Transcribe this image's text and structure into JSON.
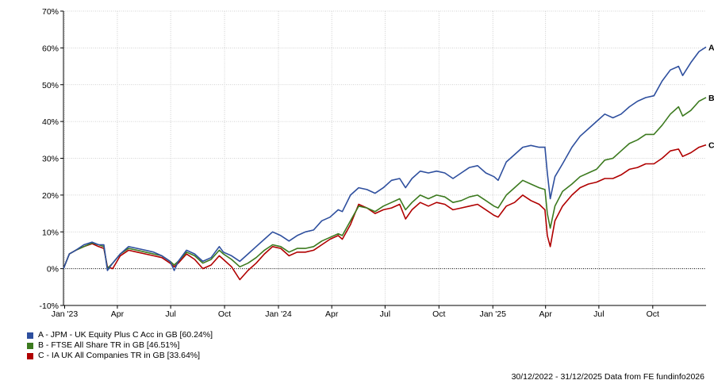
{
  "chart_data": {
    "type": "line",
    "title": "",
    "xlabel": "",
    "ylabel": "",
    "ylim": [
      -10,
      70
    ],
    "y_ticks": [
      "-10%",
      "0%",
      "10%",
      "20%",
      "30%",
      "40%",
      "50%",
      "60%",
      "70%"
    ],
    "y_tick_values": [
      -10,
      0,
      10,
      20,
      30,
      40,
      50,
      60,
      70
    ],
    "x_range": [
      "2022-12-30",
      "2025-12-31"
    ],
    "x_ticks": [
      {
        "label": "Jan '23",
        "date": "2023-01-01"
      },
      {
        "label": "Apr",
        "date": "2023-04-01"
      },
      {
        "label": "Jul",
        "date": "2023-07-01"
      },
      {
        "label": "Oct",
        "date": "2023-10-01"
      },
      {
        "label": "Jan '24",
        "date": "2024-01-01"
      },
      {
        "label": "Apr",
        "date": "2024-04-01"
      },
      {
        "label": "Jul",
        "date": "2024-07-01"
      },
      {
        "label": "Oct",
        "date": "2024-10-01"
      },
      {
        "label": "Jan '25",
        "date": "2025-01-01"
      },
      {
        "label": "Apr",
        "date": "2025-04-01"
      },
      {
        "label": "Jul",
        "date": "2025-07-01"
      },
      {
        "label": "Oct",
        "date": "2025-10-01"
      }
    ],
    "grid": true,
    "legend_position": "bottom-left",
    "series": [
      {
        "name": "A - JPM - UK Equity Plus C Acc in GB [60.24%]",
        "end_label": "A",
        "color": "#2e4f9e",
        "points": [
          [
            "2022-12-30",
            0
          ],
          [
            "2023-01-09",
            4
          ],
          [
            "2023-01-20",
            5
          ],
          [
            "2023-02-03",
            6.5
          ],
          [
            "2023-02-17",
            7.2
          ],
          [
            "2023-02-28",
            6.5
          ],
          [
            "2023-03-09",
            6.5
          ],
          [
            "2023-03-15",
            -0.5
          ],
          [
            "2023-03-24",
            1.5
          ],
          [
            "2023-04-06",
            4
          ],
          [
            "2023-04-20",
            6
          ],
          [
            "2023-05-05",
            5.5
          ],
          [
            "2023-05-19",
            5
          ],
          [
            "2023-06-02",
            4.5
          ],
          [
            "2023-06-16",
            3.5
          ],
          [
            "2023-06-30",
            2
          ],
          [
            "2023-07-07",
            -0.5
          ],
          [
            "2023-07-14",
            2
          ],
          [
            "2023-07-28",
            5
          ],
          [
            "2023-08-11",
            4
          ],
          [
            "2023-08-25",
            2
          ],
          [
            "2023-09-08",
            3
          ],
          [
            "2023-09-22",
            6
          ],
          [
            "2023-09-29",
            4.5
          ],
          [
            "2023-10-13",
            3.5
          ],
          [
            "2023-10-27",
            2
          ],
          [
            "2023-11-10",
            4
          ],
          [
            "2023-11-24",
            6
          ],
          [
            "2023-12-08",
            8
          ],
          [
            "2023-12-22",
            10
          ],
          [
            "2024-01-05",
            9
          ],
          [
            "2024-01-19",
            7.5
          ],
          [
            "2024-02-02",
            9
          ],
          [
            "2024-02-16",
            10
          ],
          [
            "2024-03-01",
            10.5
          ],
          [
            "2024-03-15",
            13
          ],
          [
            "2024-03-29",
            14
          ],
          [
            "2024-04-12",
            16
          ],
          [
            "2024-04-19",
            15.5
          ],
          [
            "2024-05-03",
            20
          ],
          [
            "2024-05-17",
            22
          ],
          [
            "2024-05-31",
            21.5
          ],
          [
            "2024-06-14",
            20.5
          ],
          [
            "2024-06-28",
            22
          ],
          [
            "2024-07-12",
            24
          ],
          [
            "2024-07-26",
            24.5
          ],
          [
            "2024-08-05",
            22
          ],
          [
            "2024-08-16",
            24.5
          ],
          [
            "2024-08-30",
            26.5
          ],
          [
            "2024-09-13",
            26
          ],
          [
            "2024-09-27",
            26.5
          ],
          [
            "2024-10-11",
            26
          ],
          [
            "2024-10-25",
            24.5
          ],
          [
            "2024-11-08",
            26
          ],
          [
            "2024-11-22",
            27.5
          ],
          [
            "2024-12-06",
            28
          ],
          [
            "2024-12-20",
            26
          ],
          [
            "2025-01-03",
            25
          ],
          [
            "2025-01-10",
            24
          ],
          [
            "2025-01-24",
            29
          ],
          [
            "2025-02-07",
            31
          ],
          [
            "2025-02-21",
            33
          ],
          [
            "2025-03-07",
            33.5
          ],
          [
            "2025-03-21",
            33
          ],
          [
            "2025-03-31",
            33
          ],
          [
            "2025-04-04",
            26
          ],
          [
            "2025-04-09",
            19
          ],
          [
            "2025-04-17",
            25
          ],
          [
            "2025-04-30",
            28.5
          ],
          [
            "2025-05-16",
            33
          ],
          [
            "2025-05-30",
            36
          ],
          [
            "2025-06-13",
            38
          ],
          [
            "2025-06-27",
            40
          ],
          [
            "2025-07-11",
            42
          ],
          [
            "2025-07-25",
            41
          ],
          [
            "2025-08-08",
            42
          ],
          [
            "2025-08-22",
            44
          ],
          [
            "2025-09-05",
            45.5
          ],
          [
            "2025-09-19",
            46.5
          ],
          [
            "2025-10-03",
            47
          ],
          [
            "2025-10-17",
            51
          ],
          [
            "2025-10-31",
            54
          ],
          [
            "2025-11-14",
            55
          ],
          [
            "2025-11-21",
            52.5
          ],
          [
            "2025-12-05",
            56
          ],
          [
            "2025-12-19",
            59
          ],
          [
            "2025-12-31",
            60.24
          ]
        ]
      },
      {
        "name": "B - FTSE All Share TR in GB [46.51%]",
        "end_label": "B",
        "color": "#3c7a1f",
        "points": [
          [
            "2022-12-30",
            0
          ],
          [
            "2023-01-09",
            4
          ],
          [
            "2023-01-20",
            5
          ],
          [
            "2023-02-03",
            6
          ],
          [
            "2023-02-17",
            7
          ],
          [
            "2023-02-28",
            6.5
          ],
          [
            "2023-03-09",
            6
          ],
          [
            "2023-03-15",
            0
          ],
          [
            "2023-03-24",
            1.5
          ],
          [
            "2023-04-06",
            4
          ],
          [
            "2023-04-20",
            5.5
          ],
          [
            "2023-05-05",
            5
          ],
          [
            "2023-05-19",
            4.5
          ],
          [
            "2023-06-02",
            4
          ],
          [
            "2023-06-16",
            3.5
          ],
          [
            "2023-06-30",
            2
          ],
          [
            "2023-07-07",
            1
          ],
          [
            "2023-07-14",
            2
          ],
          [
            "2023-07-28",
            4.5
          ],
          [
            "2023-08-11",
            3.5
          ],
          [
            "2023-08-25",
            1.5
          ],
          [
            "2023-09-08",
            2.5
          ],
          [
            "2023-09-22",
            5
          ],
          [
            "2023-09-29",
            4
          ],
          [
            "2023-10-13",
            2.5
          ],
          [
            "2023-10-27",
            0.5
          ],
          [
            "2023-11-10",
            1.5
          ],
          [
            "2023-11-24",
            3
          ],
          [
            "2023-12-08",
            5
          ],
          [
            "2023-12-22",
            6.5
          ],
          [
            "2024-01-05",
            6
          ],
          [
            "2024-01-19",
            4.5
          ],
          [
            "2024-02-02",
            5.5
          ],
          [
            "2024-02-16",
            5.5
          ],
          [
            "2024-03-01",
            6
          ],
          [
            "2024-03-15",
            7.5
          ],
          [
            "2024-03-29",
            8.5
          ],
          [
            "2024-04-12",
            9.5
          ],
          [
            "2024-04-19",
            9
          ],
          [
            "2024-05-03",
            13
          ],
          [
            "2024-05-17",
            17
          ],
          [
            "2024-05-31",
            16.5
          ],
          [
            "2024-06-14",
            15.5
          ],
          [
            "2024-06-28",
            17
          ],
          [
            "2024-07-12",
            18
          ],
          [
            "2024-07-26",
            19
          ],
          [
            "2024-08-05",
            16
          ],
          [
            "2024-08-16",
            18
          ],
          [
            "2024-08-30",
            20
          ],
          [
            "2024-09-13",
            19
          ],
          [
            "2024-09-27",
            20
          ],
          [
            "2024-10-11",
            19.5
          ],
          [
            "2024-10-25",
            18
          ],
          [
            "2024-11-08",
            18.5
          ],
          [
            "2024-11-22",
            19.5
          ],
          [
            "2024-12-06",
            20
          ],
          [
            "2024-12-20",
            18.5
          ],
          [
            "2025-01-03",
            17
          ],
          [
            "2025-01-10",
            16.5
          ],
          [
            "2025-01-24",
            20
          ],
          [
            "2025-02-07",
            22
          ],
          [
            "2025-02-21",
            24
          ],
          [
            "2025-03-07",
            23
          ],
          [
            "2025-03-21",
            22
          ],
          [
            "2025-03-31",
            21.5
          ],
          [
            "2025-04-04",
            15
          ],
          [
            "2025-04-09",
            11
          ],
          [
            "2025-04-17",
            17
          ],
          [
            "2025-04-30",
            21
          ],
          [
            "2025-05-16",
            23
          ],
          [
            "2025-05-30",
            25
          ],
          [
            "2025-06-13",
            26
          ],
          [
            "2025-06-27",
            27
          ],
          [
            "2025-07-11",
            29.5
          ],
          [
            "2025-07-25",
            30
          ],
          [
            "2025-08-08",
            32
          ],
          [
            "2025-08-22",
            34
          ],
          [
            "2025-09-05",
            35
          ],
          [
            "2025-09-19",
            36.5
          ],
          [
            "2025-10-03",
            36.5
          ],
          [
            "2025-10-17",
            39
          ],
          [
            "2025-10-31",
            42
          ],
          [
            "2025-11-14",
            44
          ],
          [
            "2025-11-21",
            41.5
          ],
          [
            "2025-12-05",
            43
          ],
          [
            "2025-12-19",
            45.5
          ],
          [
            "2025-12-31",
            46.51
          ]
        ]
      },
      {
        "name": "C - IA UK All Companies TR in GB [33.64%]",
        "end_label": "C",
        "color": "#b00000",
        "points": [
          [
            "2022-12-30",
            0
          ],
          [
            "2023-01-09",
            4
          ],
          [
            "2023-01-20",
            5
          ],
          [
            "2023-02-03",
            6
          ],
          [
            "2023-02-17",
            6.8
          ],
          [
            "2023-02-28",
            6
          ],
          [
            "2023-03-09",
            5.5
          ],
          [
            "2023-03-15",
            0.5
          ],
          [
            "2023-03-24",
            0
          ],
          [
            "2023-04-06",
            3.5
          ],
          [
            "2023-04-20",
            5
          ],
          [
            "2023-05-05",
            4.5
          ],
          [
            "2023-05-19",
            4
          ],
          [
            "2023-06-02",
            3.5
          ],
          [
            "2023-06-16",
            3
          ],
          [
            "2023-06-30",
            1.5
          ],
          [
            "2023-07-07",
            0.5
          ],
          [
            "2023-07-14",
            1.5
          ],
          [
            "2023-07-28",
            4
          ],
          [
            "2023-08-11",
            2.5
          ],
          [
            "2023-08-25",
            0
          ],
          [
            "2023-09-08",
            1
          ],
          [
            "2023-09-22",
            3.5
          ],
          [
            "2023-09-29",
            2.5
          ],
          [
            "2023-10-13",
            0.5
          ],
          [
            "2023-10-27",
            -3
          ],
          [
            "2023-11-10",
            -0.5
          ],
          [
            "2023-11-24",
            1.5
          ],
          [
            "2023-12-08",
            4
          ],
          [
            "2023-12-22",
            6
          ],
          [
            "2024-01-05",
            5.5
          ],
          [
            "2024-01-19",
            3.5
          ],
          [
            "2024-02-02",
            4.5
          ],
          [
            "2024-02-16",
            4.5
          ],
          [
            "2024-03-01",
            5
          ],
          [
            "2024-03-15",
            6.5
          ],
          [
            "2024-03-29",
            8
          ],
          [
            "2024-04-12",
            9
          ],
          [
            "2024-04-19",
            8
          ],
          [
            "2024-05-03",
            12
          ],
          [
            "2024-05-17",
            17.5
          ],
          [
            "2024-05-31",
            16.5
          ],
          [
            "2024-06-14",
            15
          ],
          [
            "2024-06-28",
            16
          ],
          [
            "2024-07-12",
            16.5
          ],
          [
            "2024-07-26",
            17.5
          ],
          [
            "2024-08-05",
            13.5
          ],
          [
            "2024-08-16",
            16
          ],
          [
            "2024-08-30",
            18
          ],
          [
            "2024-09-13",
            17
          ],
          [
            "2024-09-27",
            18
          ],
          [
            "2024-10-11",
            17.5
          ],
          [
            "2024-10-25",
            16
          ],
          [
            "2024-11-08",
            16.5
          ],
          [
            "2024-11-22",
            17
          ],
          [
            "2024-12-06",
            17.5
          ],
          [
            "2024-12-20",
            16
          ],
          [
            "2025-01-03",
            14.5
          ],
          [
            "2025-01-10",
            14
          ],
          [
            "2025-01-24",
            17
          ],
          [
            "2025-02-07",
            18
          ],
          [
            "2025-02-21",
            20
          ],
          [
            "2025-03-07",
            18.5
          ],
          [
            "2025-03-21",
            17.5
          ],
          [
            "2025-03-31",
            16
          ],
          [
            "2025-04-04",
            9
          ],
          [
            "2025-04-09",
            6
          ],
          [
            "2025-04-17",
            13
          ],
          [
            "2025-04-30",
            17
          ],
          [
            "2025-05-16",
            20
          ],
          [
            "2025-05-30",
            22
          ],
          [
            "2025-06-13",
            23
          ],
          [
            "2025-06-27",
            23.5
          ],
          [
            "2025-07-11",
            24.5
          ],
          [
            "2025-07-25",
            24.5
          ],
          [
            "2025-08-08",
            25.5
          ],
          [
            "2025-08-22",
            27
          ],
          [
            "2025-09-05",
            27.5
          ],
          [
            "2025-09-19",
            28.5
          ],
          [
            "2025-10-03",
            28.5
          ],
          [
            "2025-10-17",
            30
          ],
          [
            "2025-10-31",
            32
          ],
          [
            "2025-11-14",
            32.5
          ],
          [
            "2025-11-21",
            30.5
          ],
          [
            "2025-12-05",
            31.5
          ],
          [
            "2025-12-19",
            33
          ],
          [
            "2025-12-31",
            33.64
          ]
        ]
      }
    ]
  },
  "footer": {
    "text": "30/12/2022 - 31/12/2025 Data from FE fundinfo2026"
  }
}
